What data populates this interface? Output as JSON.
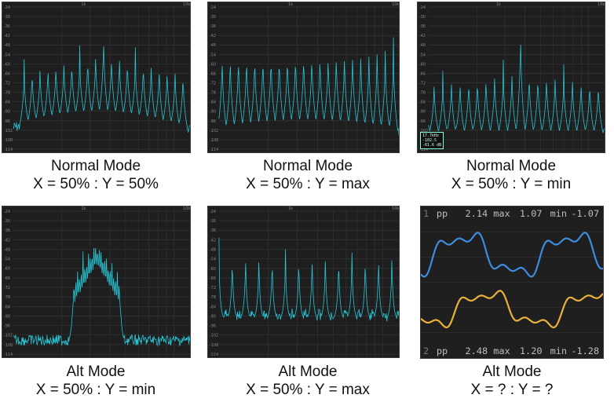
{
  "colors": {
    "trace": "#27c6d6",
    "grid": "#3a3a3a",
    "panel_bg": "#1e1e1e",
    "scope_blue": "#3d8de0",
    "scope_yellow": "#eab23a"
  },
  "spectrum_axis": {
    "db_ticks": [
      "-24",
      "-30",
      "-36",
      "-42",
      "-48",
      "-54",
      "-60",
      "-66",
      "-72",
      "-78",
      "-84",
      "-90",
      "-96",
      "-102",
      "-108",
      "-114"
    ],
    "freq_mid": "1k",
    "freq_end": "10k"
  },
  "panels": [
    {
      "caption_line1": "Normal Mode",
      "caption_line2": "X = 50% : Y = 50%"
    },
    {
      "caption_line1": "Normal Mode",
      "caption_line2": "X = 50% : Y = max"
    },
    {
      "caption_line1": "Normal Mode",
      "caption_line2": "X = 50% : Y = min"
    },
    {
      "caption_line1": "Alt Mode",
      "caption_line2": "X = 50% : Y = min"
    },
    {
      "caption_line1": "Alt Mode",
      "caption_line2": "X = 50% : Y = max"
    },
    {
      "caption_line1": "Alt Mode",
      "caption_line2": "X = ? : Y = ?"
    }
  ],
  "tooltip": {
    "line1": "17.7kHz",
    "line2": "-102.5",
    "line3": "-61.6 dB"
  },
  "scope": {
    "ch1": {
      "num": "1",
      "pp_label": "pp",
      "pp": "2.14",
      "max_label": "max",
      "max": "1.07",
      "min_label": "min",
      "min": "-1.07"
    },
    "ch2": {
      "num": "2",
      "pp_label": "pp",
      "pp": "2.48",
      "max_label": "max",
      "max": "1.20",
      "min_label": "min",
      "min": "-1.28"
    }
  }
}
